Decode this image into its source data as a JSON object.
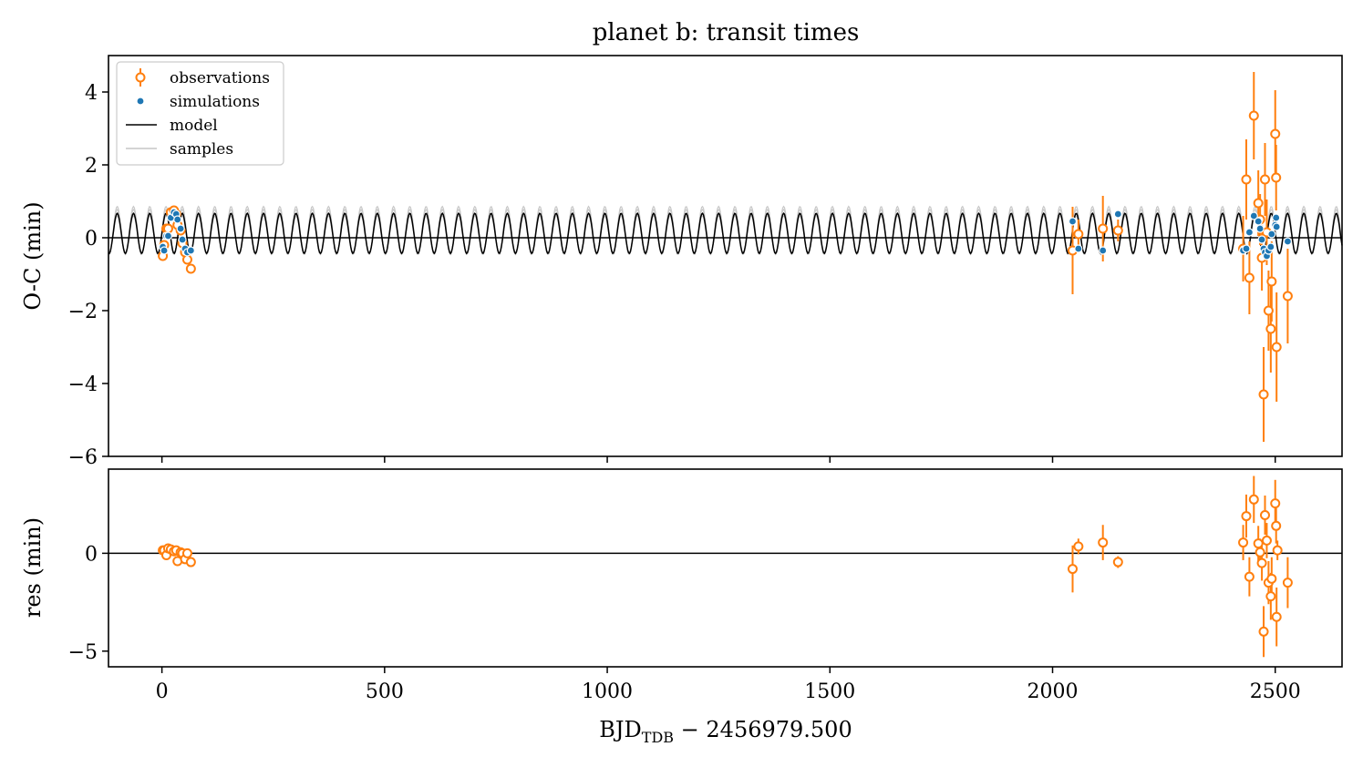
{
  "chart_data": [
    {
      "type": "scatter",
      "title": "planet b: transit times",
      "ylabel": "O-C (min)",
      "xlim": [
        -120,
        2650
      ],
      "ylim": [
        -6,
        5
      ],
      "yticks": [
        4,
        2,
        0,
        -2,
        -4,
        -6
      ],
      "ytick_labels": [
        "4",
        "2",
        "0",
        "−2",
        "−4",
        "−6"
      ],
      "grid": false,
      "legend_position": "top-left",
      "legend": [
        "observations",
        "simulations",
        "model",
        "samples"
      ],
      "model": {
        "amplitude": 0.55,
        "offset": 0.12,
        "period": 36.5,
        "phase": 0.0
      },
      "samples_spread": 0.08,
      "series": [
        {
          "name": "observations",
          "color": "#ff7f0e",
          "points": [
            {
              "x": 2,
              "y": -0.5,
              "err": 0.12
            },
            {
              "x": 5,
              "y": -0.2,
              "err": 0.1
            },
            {
              "x": 10,
              "y": 0.25,
              "err": 0.12
            },
            {
              "x": 14,
              "y": 0.25,
              "err": 0.1
            },
            {
              "x": 20,
              "y": 0.7,
              "err": 0.12
            },
            {
              "x": 27,
              "y": 0.75,
              "err": 0.12
            },
            {
              "x": 32,
              "y": 0.65,
              "err": 0.1
            },
            {
              "x": 35,
              "y": 0.35,
              "err": 0.12
            },
            {
              "x": 42,
              "y": 0.2,
              "err": 0.1
            },
            {
              "x": 46,
              "y": -0.15,
              "err": 0.1
            },
            {
              "x": 52,
              "y": -0.4,
              "err": 0.1
            },
            {
              "x": 57,
              "y": -0.6,
              "err": 0.1
            },
            {
              "x": 65,
              "y": -0.85,
              "err": 0.12
            },
            {
              "x": 2045,
              "y": -0.35,
              "err": 1.2
            },
            {
              "x": 2058,
              "y": 0.1,
              "err": 0.4
            },
            {
              "x": 2113,
              "y": 0.25,
              "err": 0.9
            },
            {
              "x": 2147,
              "y": 0.2,
              "err": 0.3
            },
            {
              "x": 2428,
              "y": -0.3,
              "err": 0.9
            },
            {
              "x": 2435,
              "y": 1.6,
              "err": 1.1
            },
            {
              "x": 2442,
              "y": -1.1,
              "err": 1.0
            },
            {
              "x": 2452,
              "y": 3.35,
              "err": 1.2
            },
            {
              "x": 2462,
              "y": 0.95,
              "err": 0.9
            },
            {
              "x": 2466,
              "y": 0.5,
              "err": 0.7
            },
            {
              "x": 2470,
              "y": -0.55,
              "err": 0.9
            },
            {
              "x": 2474,
              "y": -4.3,
              "err": 1.3
            },
            {
              "x": 2477,
              "y": 1.6,
              "err": 1.0
            },
            {
              "x": 2481,
              "y": 0.15,
              "err": 0.9
            },
            {
              "x": 2485,
              "y": -2.0,
              "err": 1.1
            },
            {
              "x": 2490,
              "y": -2.5,
              "err": 1.2
            },
            {
              "x": 2492,
              "y": -1.2,
              "err": 1.1
            },
            {
              "x": 2500,
              "y": 2.85,
              "err": 1.2
            },
            {
              "x": 2502,
              "y": 1.65,
              "err": 0.9
            },
            {
              "x": 2503,
              "y": -3.0,
              "err": 1.5
            },
            {
              "x": 2528,
              "y": -1.6,
              "err": 1.3
            }
          ]
        },
        {
          "name": "simulations",
          "color": "#1f77b4",
          "points": [
            {
              "x": 2,
              "y": -0.25
            },
            {
              "x": 5,
              "y": -0.35
            },
            {
              "x": 10,
              "y": 0.05
            },
            {
              "x": 14,
              "y": 0.05
            },
            {
              "x": 20,
              "y": 0.55
            },
            {
              "x": 27,
              "y": 0.7
            },
            {
              "x": 32,
              "y": 0.65
            },
            {
              "x": 35,
              "y": 0.5
            },
            {
              "x": 42,
              "y": 0.25
            },
            {
              "x": 46,
              "y": -0.05
            },
            {
              "x": 52,
              "y": -0.3
            },
            {
              "x": 57,
              "y": -0.4
            },
            {
              "x": 65,
              "y": -0.35
            },
            {
              "x": 2045,
              "y": 0.45
            },
            {
              "x": 2058,
              "y": -0.3
            },
            {
              "x": 2113,
              "y": -0.35
            },
            {
              "x": 2147,
              "y": 0.65
            },
            {
              "x": 2428,
              "y": -0.35
            },
            {
              "x": 2435,
              "y": -0.3
            },
            {
              "x": 2442,
              "y": 0.15
            },
            {
              "x": 2452,
              "y": 0.6
            },
            {
              "x": 2462,
              "y": 0.45
            },
            {
              "x": 2466,
              "y": 0.25
            },
            {
              "x": 2470,
              "y": -0.05
            },
            {
              "x": 2474,
              "y": -0.3
            },
            {
              "x": 2477,
              "y": -0.4
            },
            {
              "x": 2481,
              "y": -0.5
            },
            {
              "x": 2485,
              "y": -0.35
            },
            {
              "x": 2490,
              "y": -0.25
            },
            {
              "x": 2492,
              "y": 0.1
            },
            {
              "x": 2500,
              "y": 0.35
            },
            {
              "x": 2502,
              "y": 0.55
            },
            {
              "x": 2503,
              "y": 0.3
            },
            {
              "x": 2528,
              "y": -0.1
            }
          ]
        }
      ]
    },
    {
      "type": "scatter",
      "xlabel_main": "BJD",
      "xlabel_sub": "TDB",
      "xlabel_rest": " − 2456979.500",
      "ylabel": "res (min)",
      "xlim": [
        -120,
        2650
      ],
      "ylim": [
        -5.8,
        4.3
      ],
      "yticks": [
        0,
        -5
      ],
      "ytick_labels": [
        "0",
        "−5"
      ],
      "xticks": [
        0,
        500,
        1000,
        1500,
        2000,
        2500
      ],
      "xtick_labels": [
        "0",
        "500",
        "1000",
        "1500",
        "2000",
        "2500"
      ],
      "grid": false,
      "series": [
        {
          "name": "observations",
          "color": "#ff7f0e",
          "points": [
            {
              "x": 2,
              "y": 0.15,
              "err": 0.12
            },
            {
              "x": 5,
              "y": 0.15,
              "err": 0.1
            },
            {
              "x": 10,
              "y": -0.1,
              "err": 0.12
            },
            {
              "x": 14,
              "y": 0.25,
              "err": 0.1
            },
            {
              "x": 20,
              "y": 0.2,
              "err": 0.12
            },
            {
              "x": 27,
              "y": 0.1,
              "err": 0.12
            },
            {
              "x": 32,
              "y": 0.15,
              "err": 0.1
            },
            {
              "x": 35,
              "y": -0.4,
              "err": 0.12
            },
            {
              "x": 42,
              "y": 0.05,
              "err": 0.1
            },
            {
              "x": 46,
              "y": 0.0,
              "err": 0.1
            },
            {
              "x": 52,
              "y": -0.3,
              "err": 0.1
            },
            {
              "x": 57,
              "y": 0.0,
              "err": 0.1
            },
            {
              "x": 65,
              "y": -0.45,
              "err": 0.12
            },
            {
              "x": 2045,
              "y": -0.8,
              "err": 1.2
            },
            {
              "x": 2058,
              "y": 0.35,
              "err": 0.4
            },
            {
              "x": 2113,
              "y": 0.55,
              "err": 0.9
            },
            {
              "x": 2147,
              "y": -0.45,
              "err": 0.3
            },
            {
              "x": 2428,
              "y": 0.55,
              "err": 0.9
            },
            {
              "x": 2435,
              "y": 1.9,
              "err": 1.1
            },
            {
              "x": 2442,
              "y": -1.2,
              "err": 1.0
            },
            {
              "x": 2452,
              "y": 2.75,
              "err": 1.2
            },
            {
              "x": 2462,
              "y": 0.5,
              "err": 0.9
            },
            {
              "x": 2466,
              "y": 0.05,
              "err": 0.7
            },
            {
              "x": 2470,
              "y": -0.5,
              "err": 0.9
            },
            {
              "x": 2474,
              "y": -4.0,
              "err": 1.3
            },
            {
              "x": 2477,
              "y": 1.95,
              "err": 1.0
            },
            {
              "x": 2481,
              "y": 0.65,
              "err": 0.9
            },
            {
              "x": 2485,
              "y": -1.5,
              "err": 1.1
            },
            {
              "x": 2490,
              "y": -2.2,
              "err": 1.2
            },
            {
              "x": 2492,
              "y": -1.3,
              "err": 1.1
            },
            {
              "x": 2500,
              "y": 2.55,
              "err": 1.2
            },
            {
              "x": 2502,
              "y": 1.4,
              "err": 0.9
            },
            {
              "x": 2503,
              "y": -3.25,
              "err": 1.5
            },
            {
              "x": 2505,
              "y": 0.15,
              "err": 0.5
            },
            {
              "x": 2528,
              "y": -1.5,
              "err": 1.3
            }
          ]
        }
      ]
    }
  ]
}
